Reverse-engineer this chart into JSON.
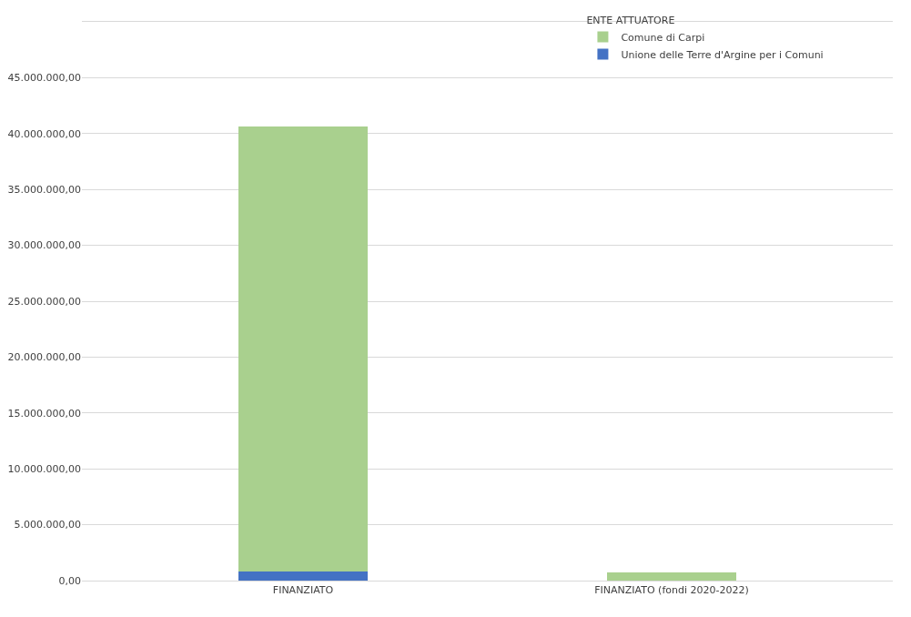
{
  "chart_data": {
    "type": "bar",
    "stacked": true,
    "categories": [
      "FINANZIATO",
      "FINANZIATO (fondi 2020-2022)"
    ],
    "series": [
      {
        "name": "Unione delle Terre d'Argine per i Comuni",
        "color": "#4472c4",
        "values": [
          800000,
          null
        ]
      },
      {
        "name": "Comune di Carpi",
        "color": "#a9d08e",
        "values": [
          39800000,
          700000
        ]
      }
    ],
    "legend_title": "ENTE ATTUATORE",
    "legend": "top right",
    "grid": "y",
    "ylim": [
      0,
      50000000
    ],
    "yticks": [
      {
        "value": 0,
        "label": "0,00"
      },
      {
        "value": 5000000,
        "label": "5.000.000,00"
      },
      {
        "value": 10000000,
        "label": "10.000.000,00"
      },
      {
        "value": 15000000,
        "label": "15.000.000,00"
      },
      {
        "value": 20000000,
        "label": "20.000.000,00"
      },
      {
        "value": 25000000,
        "label": "25.000.000,00"
      },
      {
        "value": 30000000,
        "label": "30.000.000,00"
      },
      {
        "value": 35000000,
        "label": "35.000.000,00"
      },
      {
        "value": 40000000,
        "label": "40.000.000,00"
      },
      {
        "value": 45000000,
        "label": "45.000.000,00"
      },
      {
        "value": 50000000,
        "label": null
      }
    ]
  }
}
